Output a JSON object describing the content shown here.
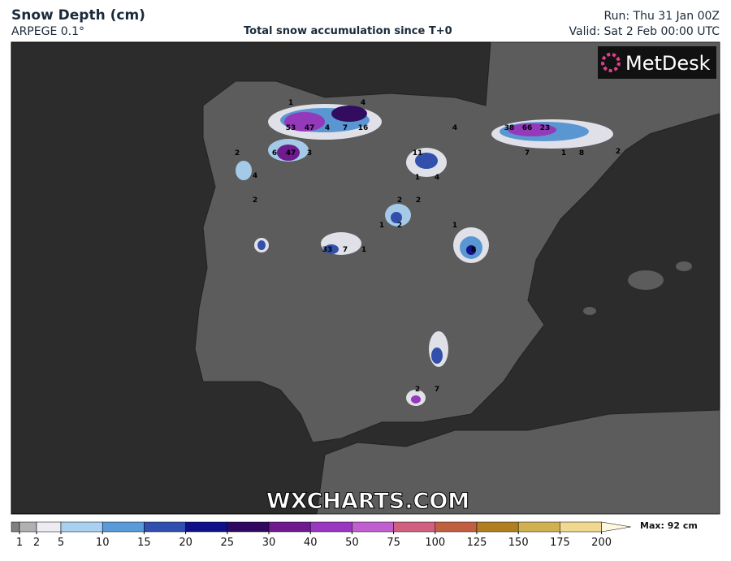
{
  "header": {
    "title": "Snow Depth (cm)",
    "model": "ARPEGE 0.1°",
    "subtitle": "Total snow accumulation since T+0",
    "run": "Run: Thu 31 Jan 00Z",
    "valid": "Valid: Sat 2 Feb 00:00 UTC"
  },
  "logo": "MetDesk",
  "watermark": "WXCHARTS.COM",
  "map_labels": [
    "1",
    "4",
    "53",
    "47",
    "4",
    "7",
    "16",
    "6",
    "47",
    "3",
    "2",
    "4",
    "2",
    "4",
    "38",
    "66",
    "23",
    "7",
    "1",
    "8",
    "2",
    "11",
    "1",
    "4",
    "2",
    "2",
    "1",
    "2",
    "1",
    "33",
    "7",
    "1",
    "8",
    "2",
    "7"
  ],
  "legend": {
    "ticks": [
      1,
      2,
      5,
      10,
      15,
      20,
      25,
      30,
      40,
      50,
      75,
      100,
      125,
      150,
      175,
      200
    ],
    "colors": [
      "#b0b0b0",
      "#ececf2",
      "#a8d0f0",
      "#5a9ad8",
      "#3050b0",
      "#10108a",
      "#300860",
      "#701890",
      "#9838c0",
      "#c060d0",
      "#d06080",
      "#c06040",
      "#b08020",
      "#d0b050",
      "#f0d890"
    ],
    "max": "Max: 92 cm"
  }
}
